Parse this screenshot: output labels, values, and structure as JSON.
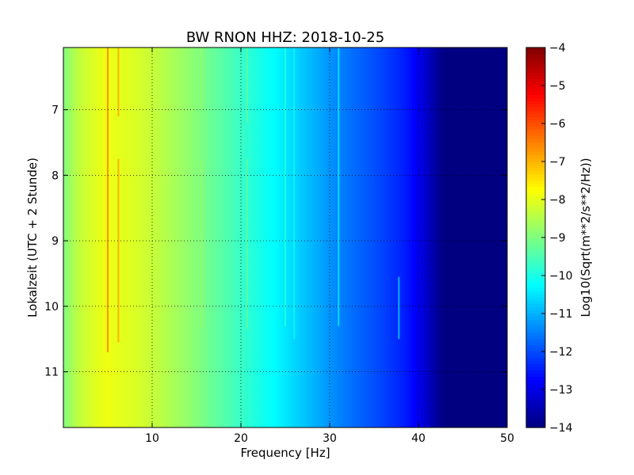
{
  "chart_data": {
    "type": "heatmap",
    "title": "BW RNON HHZ: 2018-10-25",
    "xlabel": "Frequency [Hz]",
    "ylabel": "Lokalzeit (UTC + 2 Stunde)",
    "xlim": [
      0,
      50
    ],
    "ylim": [
      11.85,
      6.05
    ],
    "y_inverted": true,
    "x_ticks": [
      10,
      20,
      30,
      40,
      50
    ],
    "y_ticks": [
      7,
      8,
      9,
      10,
      11
    ],
    "x_tick_labels": [
      "10",
      "20",
      "30",
      "40",
      "50"
    ],
    "y_tick_labels": [
      "7",
      "8",
      "9",
      "10",
      "11"
    ],
    "grid": true,
    "colormap": "jet",
    "colorbar": {
      "label": "Log10(Sqrt(m**2/s**2/Hz))",
      "range": [
        -14,
        -4
      ],
      "ticks": [
        -4,
        -5,
        -6,
        -7,
        -8,
        -9,
        -10,
        -11,
        -12,
        -13,
        -14
      ],
      "tick_labels": [
        "−4",
        "−5",
        "−6",
        "−7",
        "−8",
        "−9",
        "−10",
        "−11",
        "−12",
        "−13",
        "−14"
      ]
    },
    "frequency_profile": {
      "x": [
        0,
        1,
        2,
        3,
        4,
        5,
        6,
        8,
        10,
        12,
        14,
        16,
        18,
        20,
        22,
        24,
        26,
        28,
        30,
        32,
        34,
        36,
        38,
        39,
        40,
        41,
        42,
        43,
        50
      ],
      "value": [
        -9.0,
        -8.6,
        -8.3,
        -8.15,
        -8.0,
        -7.9,
        -8.0,
        -8.1,
        -8.3,
        -8.55,
        -8.8,
        -9.1,
        -9.4,
        -9.7,
        -10.0,
        -10.3,
        -10.65,
        -10.95,
        -11.3,
        -11.6,
        -11.85,
        -12.1,
        -12.4,
        -12.6,
        -12.9,
        -13.3,
        -13.7,
        -14.0,
        -14.0
      ]
    },
    "spectral_lines": [
      {
        "freq": 5.0,
        "value": -6.7,
        "y_range": [
          6.05,
          10.7
        ]
      },
      {
        "freq": 6.2,
        "value": -7.0,
        "y_range": [
          6.05,
          7.1
        ]
      },
      {
        "freq": 6.2,
        "value": -7.0,
        "y_range": [
          7.75,
          10.55
        ]
      },
      {
        "freq": 15.5,
        "value": -8.8,
        "y_range": [
          6.05,
          7.0
        ]
      },
      {
        "freq": 15.5,
        "value": -8.8,
        "y_range": [
          7.75,
          10.35
        ]
      },
      {
        "freq": 16.7,
        "value": -9.3,
        "y_range": [
          6.05,
          11.8
        ]
      },
      {
        "freq": 20.7,
        "value": -9.4,
        "y_range": [
          6.05,
          7.2
        ]
      },
      {
        "freq": 20.7,
        "value": -9.4,
        "y_range": [
          7.75,
          10.35
        ]
      },
      {
        "freq": 25.0,
        "value": -10.0,
        "y_range": [
          6.05,
          10.3
        ]
      },
      {
        "freq": 26.0,
        "value": -10.3,
        "y_range": [
          6.05,
          10.5
        ]
      },
      {
        "freq": 31.0,
        "value": -10.6,
        "y_range": [
          6.05,
          10.3
        ]
      },
      {
        "freq": 37.8,
        "value": -11.0,
        "y_range": [
          9.55,
          10.5
        ]
      }
    ]
  }
}
